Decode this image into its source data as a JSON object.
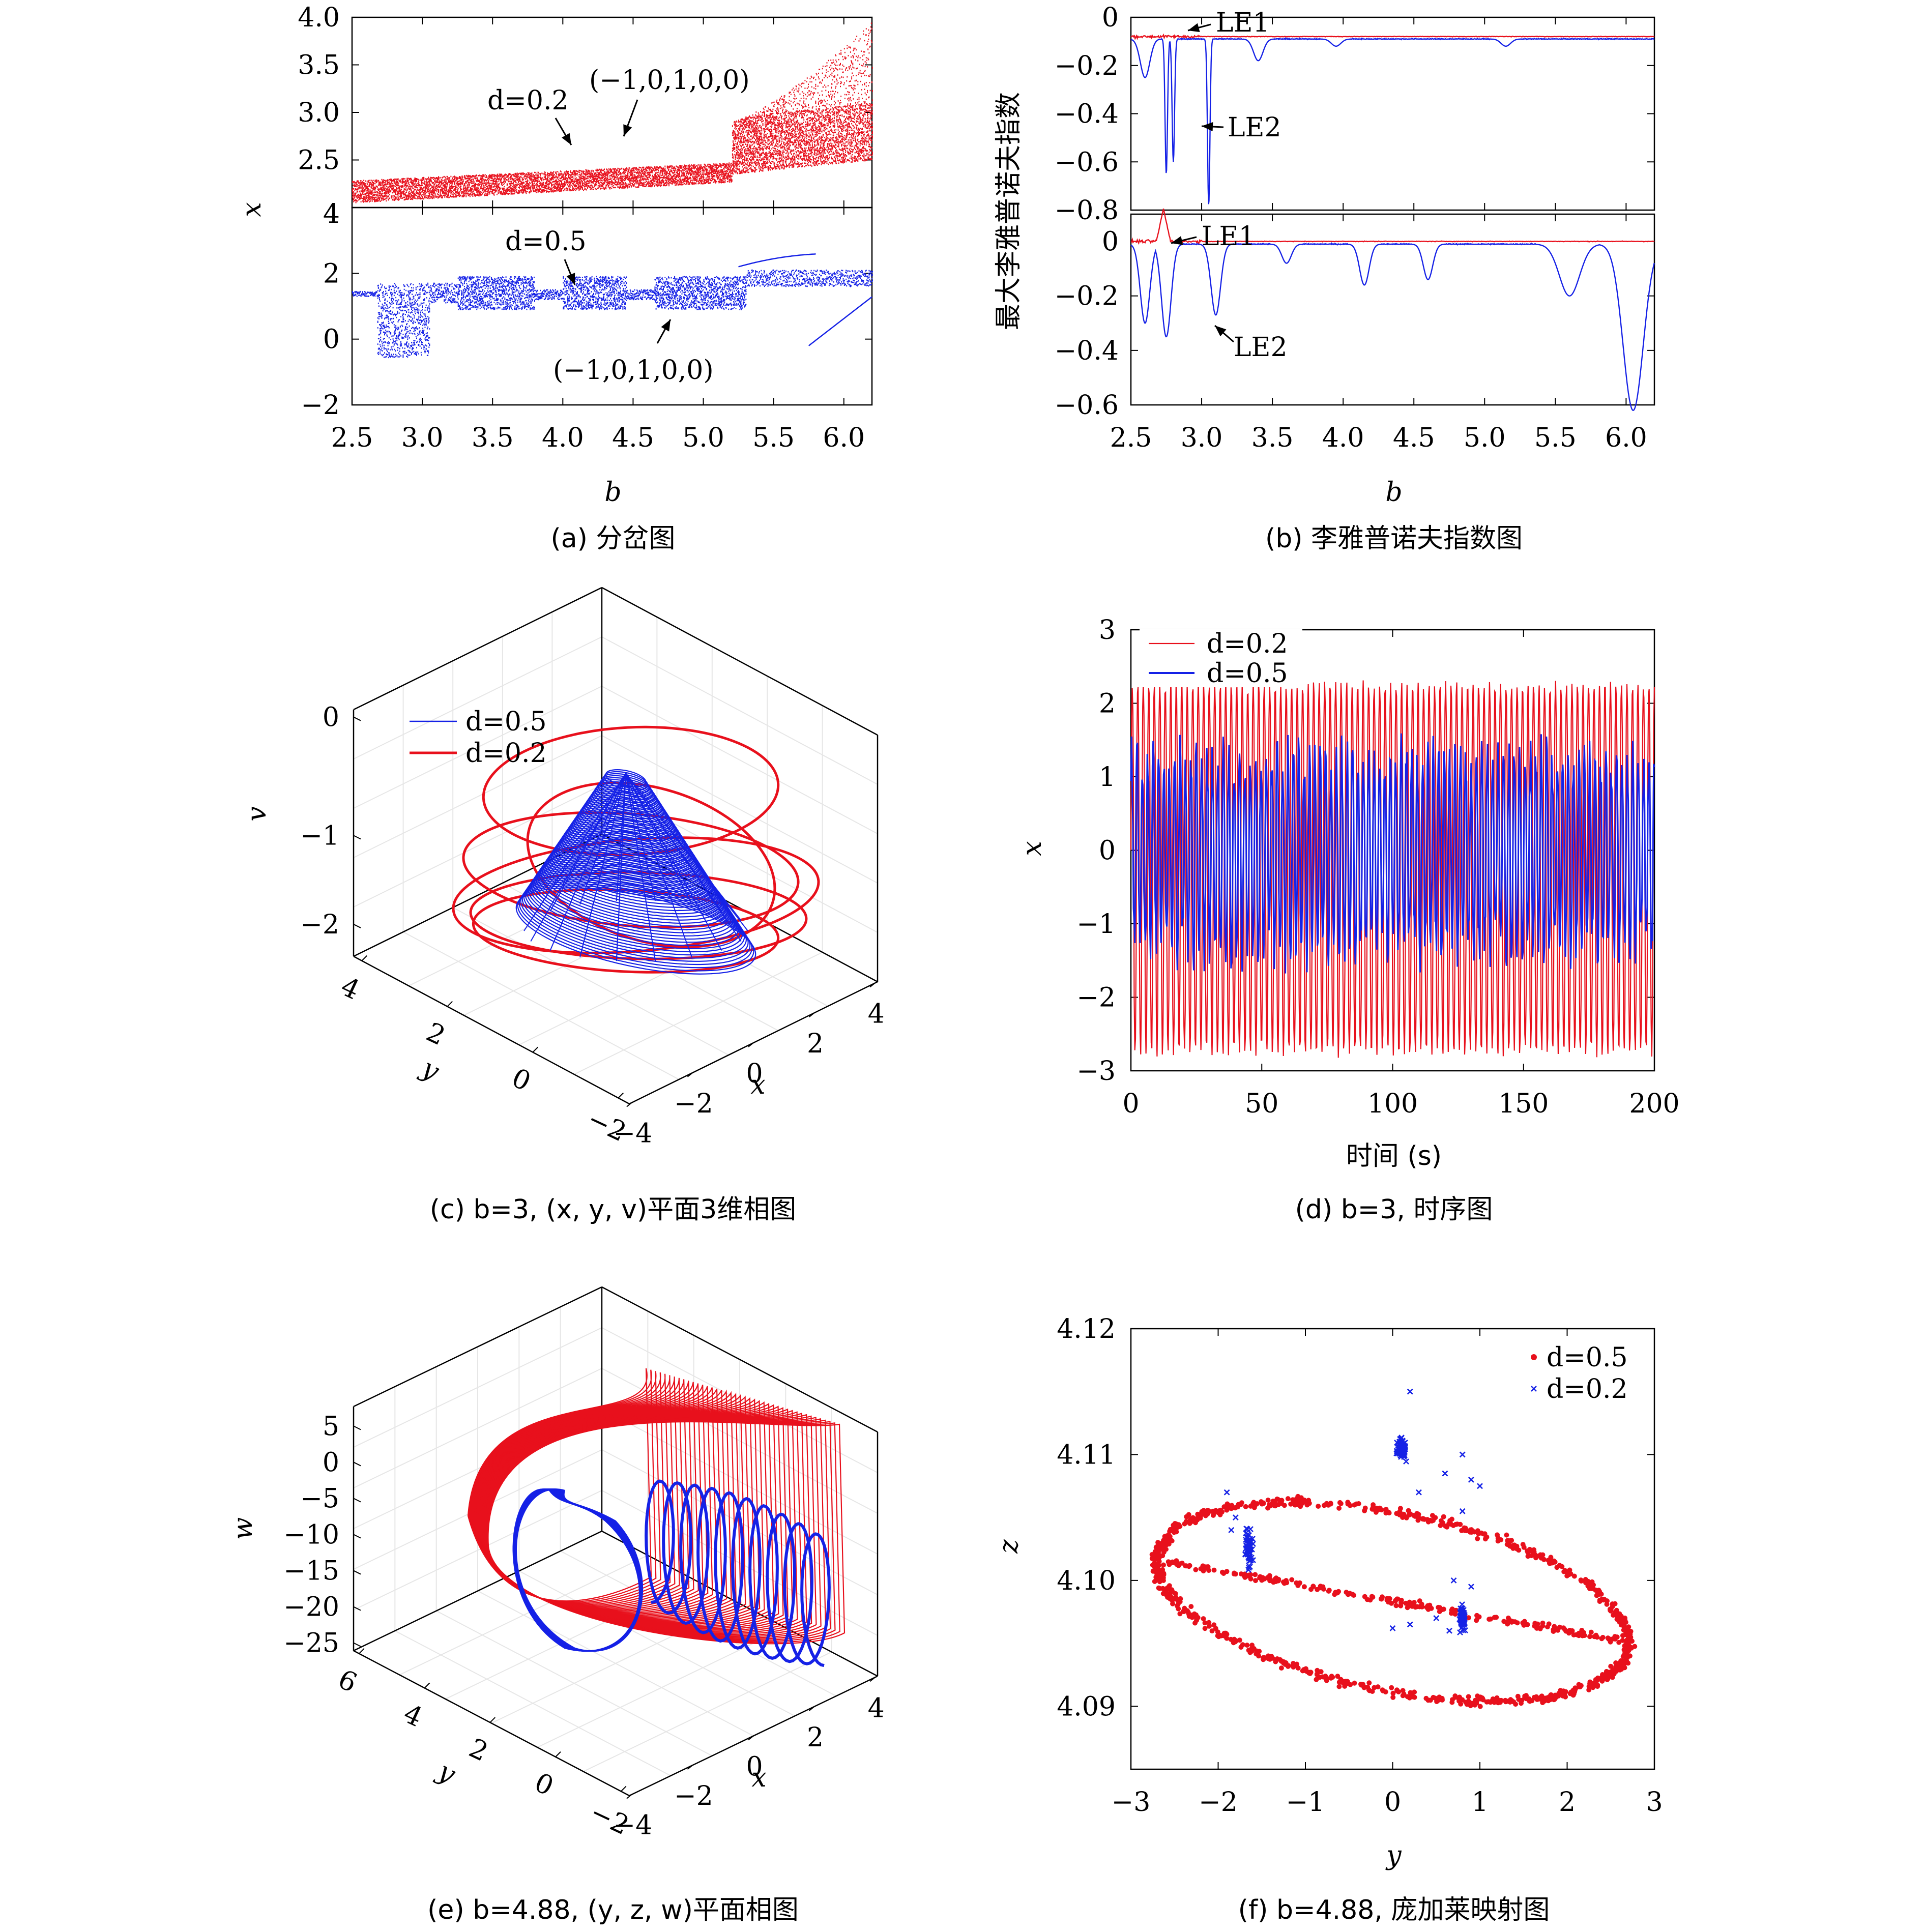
{
  "colors": {
    "red": "#e8101c",
    "blue": "#1521e6",
    "axis": "#000000",
    "grid": "#e6e6e6"
  },
  "chart_data": [
    {
      "id": "a",
      "type": "scatter",
      "caption": "(a) 分岔图",
      "xlabel": "b",
      "ylabel": "x",
      "x_ticks": [
        "2.5",
        "3.0",
        "3.5",
        "4.0",
        "4.5",
        "5.0",
        "5.5",
        "6.0"
      ],
      "xlim": [
        2.5,
        6.2
      ],
      "panels": [
        {
          "series": "d=0.2",
          "color": "red",
          "ylim": [
            2.0,
            4.0
          ],
          "y_ticks": [
            "4.0",
            "3.5",
            "3.0",
            "2.5"
          ],
          "extra_tick": "4",
          "annotations": [
            "d=0.2",
            "(−1,0,1,0,0)"
          ]
        },
        {
          "series": "d=0.5",
          "color": "blue",
          "ylim": [
            -2,
            4
          ],
          "y_ticks": [
            "2",
            "0",
            "−2"
          ],
          "annotations": [
            "d=0.5",
            "(−1,0,1,0,0)"
          ]
        }
      ]
    },
    {
      "id": "b",
      "type": "line",
      "caption": "(b) 李雅普诺夫指数图",
      "xlabel": "b",
      "ylabel": "最大李雅普诺夫指数",
      "x_ticks": [
        "2.5",
        "3.0",
        "3.5",
        "4.0",
        "4.5",
        "5.0",
        "5.5",
        "6.0"
      ],
      "xlim": [
        2.5,
        6.2
      ],
      "panels": [
        {
          "ylim": [
            -0.8,
            0
          ],
          "y_ticks": [
            "0",
            "−0.2",
            "−0.4",
            "−0.6",
            "−0.8"
          ],
          "annotations": [
            "LE1",
            "LE2"
          ],
          "LE1": {
            "color": "red",
            "level": -0.08
          },
          "LE2": {
            "color": "blue",
            "baseline": -0.09,
            "dips": [
              [
                2.6,
                -0.25
              ],
              [
                2.75,
                -0.65
              ],
              [
                2.8,
                -0.6
              ],
              [
                3.05,
                -0.78
              ],
              [
                3.4,
                -0.18
              ],
              [
                3.95,
                -0.12
              ],
              [
                5.15,
                -0.12
              ]
            ]
          }
        },
        {
          "ylim": [
            -0.6,
            0.1
          ],
          "y_ticks": [
            "0",
            "−0.2",
            "−0.4",
            "−0.6"
          ],
          "annotations": [
            "LE1",
            "LE2"
          ],
          "LE1": {
            "color": "red",
            "level": 0.0,
            "spike": [
              2.73,
              0.12
            ]
          },
          "LE2": {
            "color": "blue",
            "baseline": -0.01,
            "dips": [
              [
                2.6,
                -0.3
              ],
              [
                2.75,
                -0.35
              ],
              [
                3.1,
                -0.27
              ],
              [
                3.6,
                -0.08
              ],
              [
                4.15,
                -0.16
              ],
              [
                4.6,
                -0.14
              ],
              [
                5.6,
                -0.2
              ],
              [
                6.05,
                -0.62
              ]
            ]
          }
        }
      ]
    },
    {
      "id": "c",
      "type": "line",
      "caption": "(c) b=3, (x, y, v)平面3维相图",
      "xlabel": "x",
      "ylabel": "y",
      "zlabel": "v",
      "x_ticks": [
        "−4",
        "−2",
        "0",
        "2",
        "4"
      ],
      "y_ticks": [
        "4",
        "2",
        "0",
        "−2"
      ],
      "z_ticks": [
        "0",
        "−1",
        "−2"
      ],
      "legend": [
        {
          "name": "d=0.5",
          "color": "blue"
        },
        {
          "name": "d=0.2",
          "color": "red"
        }
      ]
    },
    {
      "id": "d",
      "type": "line",
      "caption": "(d) b=3, 时序图",
      "xlabel": "时间 (s)",
      "ylabel": "x",
      "xlim": [
        0,
        200
      ],
      "ylim": [
        -3,
        3
      ],
      "x_ticks": [
        "0",
        "50",
        "100",
        "150",
        "200"
      ],
      "y_ticks": [
        "3",
        "2",
        "1",
        "0",
        "−1",
        "−2",
        "−3"
      ],
      "series": [
        {
          "name": "d=0.2",
          "color": "red",
          "max": 2.3,
          "min": -2.8
        },
        {
          "name": "d=0.5",
          "color": "blue",
          "max": 1.6,
          "min": -1.7
        }
      ]
    },
    {
      "id": "e",
      "type": "line",
      "caption": "(e) b=4.88, (y, z, w)平面相图",
      "xlabel": "x",
      "ylabel": "y",
      "zlabel": "w",
      "x_ticks": [
        "−4",
        "−2",
        "0",
        "2",
        "4"
      ],
      "y_ticks": [
        "6",
        "4",
        "2",
        "0",
        "−2"
      ],
      "z_ticks": [
        "5",
        "0",
        "−5",
        "−10",
        "−15",
        "−20",
        "−25"
      ]
    },
    {
      "id": "f",
      "type": "scatter",
      "caption": "(f) b=4.88, 庞加莱映射图",
      "xlabel": "y",
      "ylabel": "z",
      "xlim": [
        -3,
        3
      ],
      "ylim": [
        4.085,
        4.12
      ],
      "x_ticks": [
        "−3",
        "−2",
        "−1",
        "0",
        "1",
        "2",
        "3"
      ],
      "y_ticks": [
        "4.12",
        "4.11",
        "4.10",
        "4.09"
      ],
      "legend": [
        {
          "name": "d=0.5",
          "color": "red"
        },
        {
          "name": "d=0.2",
          "color": "blue"
        }
      ]
    }
  ]
}
